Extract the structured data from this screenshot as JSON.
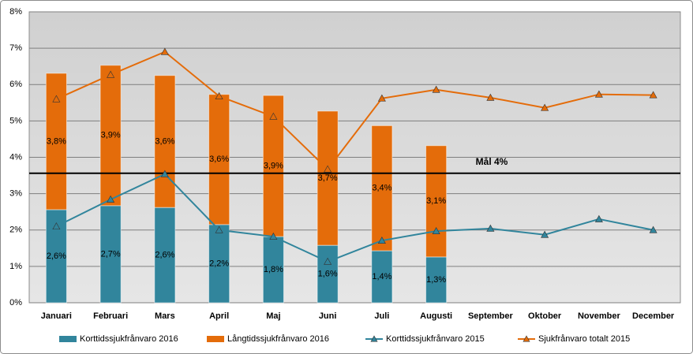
{
  "chart_data": {
    "type": "bar",
    "categories": [
      "Januari",
      "Februari",
      "Mars",
      "April",
      "Maj",
      "Juni",
      "Juli",
      "Augusti",
      "September",
      "Oktober",
      "November",
      "December"
    ],
    "series": [
      {
        "name": "Korttidssjukfrånvaro 2016",
        "type": "bar",
        "color": "#31859c",
        "values": [
          2.56,
          2.67,
          2.62,
          2.15,
          1.82,
          1.58,
          1.43,
          1.26,
          null,
          null,
          null,
          null
        ],
        "value_labels": [
          "2,6%",
          "2,7%",
          "2,6%",
          "2,2%",
          "1,8%",
          "1,6%",
          "1,4%",
          "1,3%",
          null,
          null,
          null,
          null
        ]
      },
      {
        "name": "Långtidssjukfrånvaro 2016",
        "type": "bar",
        "color": "#e46c0a",
        "values": [
          3.75,
          3.86,
          3.63,
          3.58,
          3.88,
          3.69,
          3.44,
          3.06,
          null,
          null,
          null,
          null
        ],
        "value_labels": [
          "3,8%",
          "3,9%",
          "3,6%",
          "3,6%",
          "3,9%",
          "3,7%",
          "3,4%",
          "3,1%",
          null,
          null,
          null,
          null
        ]
      },
      {
        "name": "Korttidssjukfrånvaro 2015",
        "type": "line",
        "color": "#31859c",
        "values": [
          2.1,
          2.84,
          3.54,
          2.0,
          1.82,
          1.13,
          1.71,
          1.97,
          2.04,
          1.87,
          2.3,
          2.0
        ]
      },
      {
        "name": "Sjukfrånvaro totalt 2015",
        "type": "line",
        "color": "#e46c0a",
        "values": [
          5.6,
          6.27,
          6.9,
          5.68,
          5.12,
          3.67,
          5.62,
          5.86,
          5.64,
          5.36,
          5.73,
          5.71
        ]
      }
    ],
    "target_line": {
      "label": "Mål 4%",
      "value": 3.56
    },
    "ylim": [
      0,
      8
    ],
    "yticks": [
      {
        "value": 0,
        "label": "0%"
      },
      {
        "value": 1,
        "label": "1%"
      },
      {
        "value": 2,
        "label": "2%"
      },
      {
        "value": 3,
        "label": "3%"
      },
      {
        "value": 4,
        "label": "4%"
      },
      {
        "value": 5,
        "label": "5%"
      },
      {
        "value": 6,
        "label": "6%"
      },
      {
        "value": 7,
        "label": "7%"
      },
      {
        "value": 8,
        "label": "8%"
      }
    ],
    "grid": true,
    "legend": "bottom"
  }
}
